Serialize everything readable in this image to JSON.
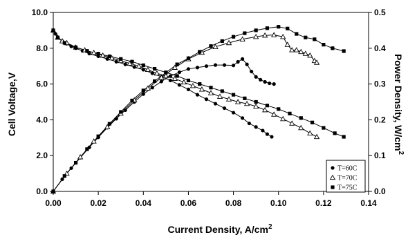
{
  "chart_data": {
    "type": "scatter",
    "xlabel": "Current Density, A/cm",
    "xlabel_sup": "2",
    "ylabel_left": "Cell Voltage,V",
    "ylabel_right": "Power Density, W/cm",
    "ylabel_right_sup": "2",
    "xlim": [
      0,
      0.14
    ],
    "ylim_left": [
      0,
      10
    ],
    "ylim_right": [
      0,
      0.5
    ],
    "x_ticks": [
      "0.00",
      "0.02",
      "0.04",
      "0.06",
      "0.08",
      "0.10",
      "0.12",
      "0.14"
    ],
    "y_left_ticks": [
      "0.0",
      "2.0",
      "4.0",
      "6.0",
      "8.0",
      "10.0"
    ],
    "y_right_ticks": [
      "0.0",
      "0.1",
      "0.2",
      "0.3",
      "0.4",
      "0.5"
    ],
    "grid": false,
    "legend_position": "bottom-right",
    "series": [
      {
        "name": "T=60C",
        "marker": "circle",
        "voltage": {
          "x": [
            0.0,
            0.001,
            0.002,
            0.004,
            0.006,
            0.008,
            0.01,
            0.013,
            0.016,
            0.02,
            0.024,
            0.028,
            0.032,
            0.036,
            0.04,
            0.044,
            0.048,
            0.052,
            0.056,
            0.06,
            0.064,
            0.068,
            0.072,
            0.076,
            0.08,
            0.084,
            0.087,
            0.09,
            0.093,
            0.095,
            0.097
          ],
          "y": [
            9.0,
            8.8,
            8.6,
            8.4,
            8.25,
            8.1,
            8.0,
            7.85,
            7.7,
            7.55,
            7.4,
            7.25,
            7.1,
            6.95,
            6.8,
            6.6,
            6.4,
            6.2,
            5.95,
            5.7,
            5.4,
            5.15,
            4.9,
            4.65,
            4.4,
            4.1,
            3.8,
            3.6,
            3.4,
            3.2,
            3.05
          ]
        },
        "power": {
          "x": [
            0.0,
            0.004,
            0.008,
            0.012,
            0.016,
            0.02,
            0.024,
            0.028,
            0.032,
            0.036,
            0.04,
            0.044,
            0.048,
            0.052,
            0.056,
            0.06,
            0.064,
            0.068,
            0.072,
            0.076,
            0.08,
            0.082,
            0.084,
            0.086,
            0.088,
            0.09,
            0.092,
            0.094,
            0.096,
            0.098
          ],
          "y": [
            0.0,
            0.034,
            0.065,
            0.094,
            0.123,
            0.151,
            0.178,
            0.203,
            0.227,
            0.25,
            0.272,
            0.29,
            0.307,
            0.322,
            0.333,
            0.342,
            0.346,
            0.35,
            0.353,
            0.353,
            0.352,
            0.362,
            0.37,
            0.355,
            0.335,
            0.32,
            0.312,
            0.306,
            0.302,
            0.3
          ]
        }
      },
      {
        "name": "T=70C",
        "marker": "triangle-open",
        "voltage": {
          "x": [
            0.0,
            0.002,
            0.004,
            0.006,
            0.01,
            0.014,
            0.018,
            0.022,
            0.026,
            0.03,
            0.034,
            0.038,
            0.042,
            0.046,
            0.05,
            0.054,
            0.058,
            0.062,
            0.066,
            0.07,
            0.074,
            0.078,
            0.082,
            0.086,
            0.09,
            0.094,
            0.098,
            0.102,
            0.106,
            0.11,
            0.114,
            0.117
          ],
          "y": [
            9.0,
            8.6,
            8.4,
            8.3,
            8.05,
            7.9,
            7.75,
            7.6,
            7.45,
            7.3,
            7.15,
            7.0,
            6.8,
            6.6,
            6.45,
            6.3,
            6.1,
            5.9,
            5.7,
            5.5,
            5.3,
            5.15,
            5.0,
            4.9,
            4.75,
            4.55,
            4.3,
            4.05,
            3.8,
            3.55,
            3.25,
            3.05
          ]
        },
        "power": {
          "x": [
            0.0,
            0.006,
            0.012,
            0.018,
            0.024,
            0.03,
            0.036,
            0.042,
            0.048,
            0.054,
            0.06,
            0.066,
            0.072,
            0.078,
            0.084,
            0.09,
            0.094,
            0.098,
            0.102,
            0.104,
            0.106,
            0.108,
            0.11,
            0.112,
            0.114,
            0.116,
            0.117
          ],
          "y": [
            0.0,
            0.05,
            0.096,
            0.14,
            0.18,
            0.218,
            0.255,
            0.288,
            0.318,
            0.346,
            0.37,
            0.388,
            0.404,
            0.415,
            0.425,
            0.432,
            0.436,
            0.437,
            0.432,
            0.41,
            0.395,
            0.395,
            0.39,
            0.385,
            0.38,
            0.365,
            0.36
          ]
        }
      },
      {
        "name": "T=75C",
        "marker": "square",
        "voltage": {
          "x": [
            0.0,
            0.002,
            0.005,
            0.01,
            0.015,
            0.02,
            0.025,
            0.03,
            0.035,
            0.04,
            0.045,
            0.05,
            0.055,
            0.06,
            0.065,
            0.07,
            0.075,
            0.08,
            0.085,
            0.09,
            0.095,
            0.1,
            0.105,
            0.11,
            0.115,
            0.12,
            0.125,
            0.129
          ],
          "y": [
            9.0,
            8.6,
            8.3,
            8.05,
            7.85,
            7.7,
            7.55,
            7.4,
            7.25,
            7.05,
            6.85,
            6.65,
            6.45,
            6.2,
            6.0,
            5.8,
            5.6,
            5.4,
            5.2,
            5.0,
            4.8,
            4.6,
            4.35,
            4.1,
            3.85,
            3.55,
            3.25,
            3.05
          ]
        },
        "power": {
          "x": [
            0.0,
            0.005,
            0.01,
            0.015,
            0.02,
            0.025,
            0.03,
            0.035,
            0.04,
            0.045,
            0.05,
            0.055,
            0.06,
            0.065,
            0.07,
            0.075,
            0.08,
            0.085,
            0.09,
            0.095,
            0.1,
            0.104,
            0.108,
            0.112,
            0.116,
            0.12,
            0.124,
            0.129
          ],
          "y": [
            0.0,
            0.043,
            0.08,
            0.118,
            0.154,
            0.189,
            0.222,
            0.254,
            0.282,
            0.308,
            0.332,
            0.355,
            0.372,
            0.39,
            0.406,
            0.42,
            0.432,
            0.442,
            0.45,
            0.456,
            0.46,
            0.455,
            0.44,
            0.43,
            0.425,
            0.41,
            0.4,
            0.392
          ]
        }
      }
    ]
  }
}
